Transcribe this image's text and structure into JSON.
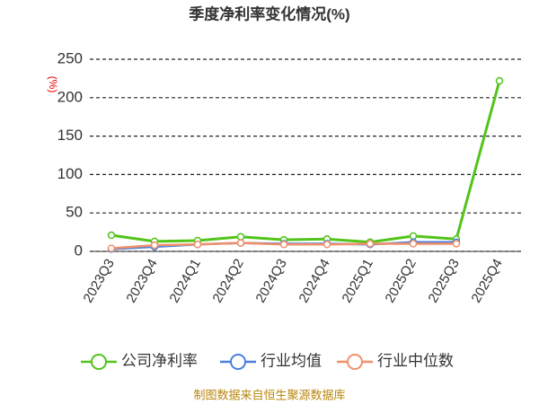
{
  "chart_data": {
    "type": "line",
    "title": "季度净利率变化情况(%)",
    "y_label": "(%)",
    "categories": [
      "2023Q3",
      "2023Q4",
      "2024Q1",
      "2024Q2",
      "2024Q3",
      "2024Q4",
      "2025Q1",
      "2025Q2",
      "2025Q3",
      "2025Q4"
    ],
    "series": [
      {
        "name": "公司净利率",
        "color": "#52c41a",
        "values": [
          21,
          13,
          14,
          19,
          15,
          16,
          12,
          20,
          16,
          222
        ]
      },
      {
        "name": "行业均值",
        "color": "#4a7fe0",
        "values": [
          3,
          6,
          9,
          11,
          10,
          10,
          9,
          12,
          12,
          null
        ]
      },
      {
        "name": "行业中位数",
        "color": "#f0906a",
        "values": [
          4,
          8,
          9,
          11,
          9,
          9,
          10,
          10,
          10,
          null
        ]
      }
    ],
    "ylim": [
      0,
      250
    ],
    "yticks": [
      0,
      50,
      100,
      150,
      200,
      250
    ],
    "grid": true,
    "source": "制图数据来自恒生聚源数据库"
  }
}
